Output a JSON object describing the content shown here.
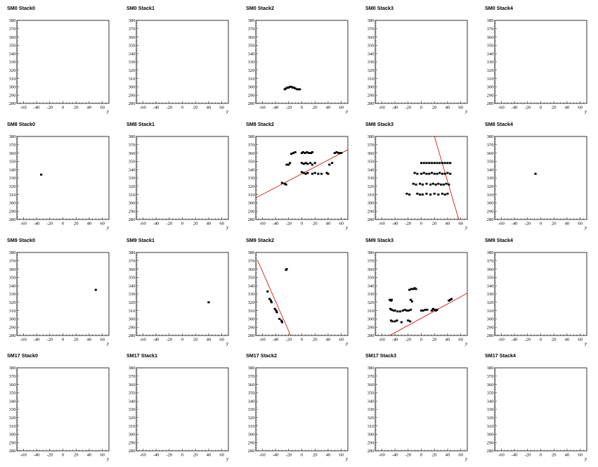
{
  "chart_data": {
    "type": "scatter",
    "xlabel": "y",
    "xlim": [
      -70,
      70
    ],
    "ylim": [
      280,
      380
    ],
    "xticks": [
      "-60",
      "-40",
      "-20",
      "0",
      "20",
      "40",
      "60"
    ],
    "yticks": [
      "280",
      "290",
      "300",
      "310",
      "320",
      "330",
      "340",
      "350",
      "360",
      "370",
      "380"
    ],
    "colors": {
      "points": "#000000",
      "fit_line": "#cc0000",
      "frame": "#000000"
    },
    "panels": [
      {
        "title": "SM0 Stack0",
        "points": [],
        "lines": []
      },
      {
        "title": "SM0 Stack1",
        "points": [],
        "lines": []
      },
      {
        "title": "SM0 Stack2",
        "points": [
          [
            -26,
            297
          ],
          [
            -24,
            298
          ],
          [
            -22,
            299
          ],
          [
            -20,
            299
          ],
          [
            -18,
            300
          ],
          [
            -16,
            300
          ],
          [
            -14,
            299
          ],
          [
            -12,
            299
          ],
          [
            -10,
            298
          ],
          [
            -7,
            297
          ],
          [
            -5,
            297
          ],
          [
            -3,
            297
          ]
        ],
        "lines": []
      },
      {
        "title": "SM0 Stack3",
        "points": [],
        "lines": []
      },
      {
        "title": "SM0 Stack4",
        "points": [],
        "lines": []
      },
      {
        "title": "SM8 Stack0",
        "points": [
          [
            -33,
            334
          ]
        ],
        "lines": []
      },
      {
        "title": "SM8 Stack1",
        "points": [],
        "lines": []
      },
      {
        "title": "SM8 Stack2",
        "points": [
          [
            -30,
            324
          ],
          [
            -26,
            323
          ],
          [
            -24,
            322
          ],
          [
            -23,
            346
          ],
          [
            -20,
            346
          ],
          [
            -18,
            348
          ],
          [
            -16,
            359
          ],
          [
            -13,
            360
          ],
          [
            -10,
            361
          ],
          [
            0,
            360
          ],
          [
            2,
            361
          ],
          [
            5,
            360
          ],
          [
            8,
            361
          ],
          [
            11,
            360
          ],
          [
            14,
            360
          ],
          [
            16,
            361
          ],
          [
            0,
            348
          ],
          [
            3,
            347
          ],
          [
            6,
            348
          ],
          [
            9,
            347
          ],
          [
            13,
            348
          ],
          [
            16,
            346
          ],
          [
            20,
            348
          ],
          [
            0,
            337
          ],
          [
            3,
            336
          ],
          [
            6,
            335
          ],
          [
            9,
            336
          ],
          [
            16,
            335
          ],
          [
            20,
            336
          ],
          [
            25,
            335
          ],
          [
            30,
            335
          ],
          [
            38,
            336
          ],
          [
            40,
            335
          ],
          [
            42,
            346
          ],
          [
            46,
            348
          ],
          [
            50,
            360
          ],
          [
            53,
            361
          ],
          [
            56,
            360
          ],
          [
            58,
            360
          ],
          [
            60,
            360
          ]
        ],
        "lines": [
          [
            [
              -70,
              306
            ],
            [
              70,
              364
            ]
          ]
        ]
      },
      {
        "title": "SM8 Stack3",
        "points": [
          [
            0,
            348
          ],
          [
            4,
            348
          ],
          [
            8,
            348
          ],
          [
            12,
            348
          ],
          [
            16,
            348
          ],
          [
            20,
            348
          ],
          [
            24,
            348
          ],
          [
            28,
            348
          ],
          [
            32,
            348
          ],
          [
            36,
            348
          ],
          [
            40,
            348
          ],
          [
            44,
            348
          ],
          [
            -10,
            336
          ],
          [
            -6,
            335
          ],
          [
            0,
            335
          ],
          [
            4,
            336
          ],
          [
            8,
            335
          ],
          [
            12,
            335
          ],
          [
            16,
            336
          ],
          [
            20,
            335
          ],
          [
            24,
            335
          ],
          [
            28,
            336
          ],
          [
            32,
            335
          ],
          [
            36,
            335
          ],
          [
            40,
            336
          ],
          [
            44,
            335
          ],
          [
            -12,
            323
          ],
          [
            -8,
            322
          ],
          [
            -2,
            323
          ],
          [
            2,
            322
          ],
          [
            8,
            323
          ],
          [
            14,
            322
          ],
          [
            18,
            323
          ],
          [
            22,
            322
          ],
          [
            26,
            323
          ],
          [
            30,
            322
          ],
          [
            34,
            322
          ],
          [
            38,
            323
          ],
          [
            42,
            322
          ],
          [
            -22,
            311
          ],
          [
            -18,
            310
          ],
          [
            -6,
            311
          ],
          [
            -2,
            310
          ],
          [
            2,
            310
          ],
          [
            8,
            311
          ],
          [
            14,
            310
          ],
          [
            20,
            311
          ],
          [
            26,
            310
          ],
          [
            32,
            311
          ],
          [
            36,
            310
          ],
          [
            40,
            311
          ]
        ],
        "lines": [
          [
            [
              20,
              380
            ],
            [
              57,
              280
            ]
          ]
        ]
      },
      {
        "title": "SM8 Stack4",
        "points": [
          [
            -8,
            335
          ]
        ],
        "lines": []
      },
      {
        "title": "SM9 Stack0",
        "points": [
          [
            50,
            335
          ]
        ],
        "lines": []
      },
      {
        "title": "SM9 Stack1",
        "points": [
          [
            40,
            320
          ]
        ],
        "lines": []
      },
      {
        "title": "SM9 Stack2",
        "points": [
          [
            -24,
            359
          ],
          [
            -23,
            360
          ],
          [
            -52,
            333
          ],
          [
            -49,
            324
          ],
          [
            -47,
            322
          ],
          [
            -46,
            320
          ],
          [
            -41,
            312
          ],
          [
            -39,
            310
          ],
          [
            -38,
            308
          ],
          [
            -34,
            300
          ],
          [
            -31,
            298
          ],
          [
            -30,
            296
          ]
        ],
        "lines": [
          [
            [
              -67,
              370
            ],
            [
              -17,
              280
            ]
          ]
        ]
      },
      {
        "title": "SM9 Stack3",
        "points": [
          [
            -48,
            323
          ],
          [
            -46,
            322
          ],
          [
            -45,
            323
          ],
          [
            -47,
            312
          ],
          [
            -45,
            311
          ],
          [
            -42,
            310
          ],
          [
            -40,
            310
          ],
          [
            -36,
            309
          ],
          [
            -32,
            309
          ],
          [
            -28,
            310
          ],
          [
            -25,
            311
          ],
          [
            -22,
            310
          ],
          [
            -19,
            310
          ],
          [
            -16,
            311
          ],
          [
            -46,
            298
          ],
          [
            -44,
            297
          ],
          [
            -40,
            297
          ],
          [
            -37,
            298
          ],
          [
            -30,
            296
          ],
          [
            -20,
            298
          ],
          [
            -17,
            297
          ],
          [
            -18,
            335
          ],
          [
            -15,
            336
          ],
          [
            -12,
            336
          ],
          [
            -10,
            337
          ],
          [
            -8,
            336
          ],
          [
            -16,
            323
          ],
          [
            -14,
            321
          ],
          [
            0,
            310
          ],
          [
            3,
            310
          ],
          [
            6,
            311
          ],
          [
            9,
            311
          ],
          [
            16,
            310
          ],
          [
            18,
            312
          ],
          [
            20,
            311
          ],
          [
            22,
            310
          ],
          [
            24,
            311
          ],
          [
            42,
            322
          ],
          [
            44,
            323
          ],
          [
            46,
            324
          ]
        ],
        "lines": [
          [
            [
              -48,
              280
            ],
            [
              70,
              331
            ]
          ]
        ]
      },
      {
        "title": "SM9 Stack4",
        "points": [],
        "lines": []
      },
      {
        "title": "SM17 Stack0",
        "points": [],
        "lines": []
      },
      {
        "title": "SM17 Stack1",
        "points": [],
        "lines": []
      },
      {
        "title": "SM17 Stack2",
        "points": [],
        "lines": []
      },
      {
        "title": "SM17 Stack3",
        "points": [],
        "lines": []
      },
      {
        "title": "SM17 Stack4",
        "points": [],
        "lines": []
      }
    ]
  }
}
